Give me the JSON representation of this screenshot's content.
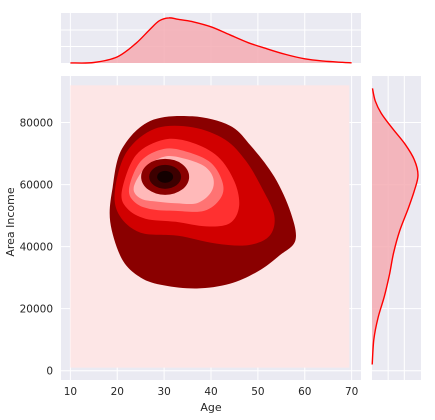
{
  "chart_data": {
    "type": "jointplot-kde",
    "xlabel": "Age",
    "ylabel": "Area Income",
    "xlim": [
      8,
      72
    ],
    "ylim": [
      -3000,
      95000
    ],
    "xticks": [
      10,
      20,
      30,
      40,
      50,
      60,
      70
    ],
    "yticks": [
      0,
      20000,
      40000,
      60000,
      80000
    ],
    "xtick_labels": [
      "10",
      "20",
      "30",
      "40",
      "50",
      "60",
      "70"
    ],
    "ytick_labels": [
      "0",
      "20000",
      "40000",
      "60000",
      "80000"
    ],
    "grid": true,
    "fill_extent": {
      "x": [
        10,
        69.5
      ],
      "y": [
        1000,
        92000
      ]
    },
    "peak": {
      "x": 30,
      "y": 62500
    },
    "joint_contours": [
      {
        "level": 1,
        "points": [
          [
            23.5,
            59000
          ],
          [
            26,
            65500
          ],
          [
            30,
            69000
          ],
          [
            34,
            68500
          ],
          [
            38.5,
            66000
          ],
          [
            40.5,
            62000
          ],
          [
            40,
            57500
          ],
          [
            37,
            54000
          ],
          [
            32.5,
            54000
          ],
          [
            28.5,
            54500
          ],
          [
            25,
            55500
          ]
        ]
      },
      {
        "level": 2,
        "points": [
          [
            22.5,
            58500
          ],
          [
            25,
            67500
          ],
          [
            30,
            71500
          ],
          [
            35,
            70500
          ],
          [
            40,
            67000
          ],
          [
            42.5,
            60500
          ],
          [
            42,
            55500
          ],
          [
            38.5,
            51500
          ],
          [
            32.5,
            51500
          ],
          [
            27.5,
            52000
          ],
          [
            24,
            54000
          ]
        ]
      },
      {
        "level": 3,
        "points": [
          [
            21,
            58000
          ],
          [
            24,
            69500
          ],
          [
            30,
            74500
          ],
          [
            36,
            73500
          ],
          [
            41.5,
            69000
          ],
          [
            45,
            61000
          ],
          [
            46,
            53000
          ],
          [
            44,
            47500
          ],
          [
            39,
            46500
          ],
          [
            32.5,
            48000
          ],
          [
            26,
            49000
          ],
          [
            22,
            52500
          ]
        ]
      },
      {
        "level": 4,
        "points": [
          [
            19.5,
            58000
          ],
          [
            22,
            70500
          ],
          [
            28,
            78000
          ],
          [
            36,
            78500
          ],
          [
            43,
            74500
          ],
          [
            47.5,
            67500
          ],
          [
            51,
            58500
          ],
          [
            53.5,
            50000
          ],
          [
            52.5,
            43500
          ],
          [
            48,
            40500
          ],
          [
            41,
            41000
          ],
          [
            33,
            43500
          ],
          [
            25,
            44500
          ],
          [
            20.5,
            50000
          ]
        ]
      },
      {
        "level": 5,
        "points": [
          [
            19,
            59000
          ],
          [
            21,
            71500
          ],
          [
            27,
            80500
          ],
          [
            36,
            82000
          ],
          [
            44,
            79000
          ],
          [
            48.5,
            72500
          ],
          [
            53.5,
            62500
          ],
          [
            57,
            51000
          ],
          [
            58,
            42000
          ],
          [
            54.5,
            37000
          ],
          [
            50,
            32000
          ],
          [
            44,
            28000
          ],
          [
            37,
            26500
          ],
          [
            30,
            27500
          ],
          [
            25,
            30000
          ],
          [
            21,
            36000
          ],
          [
            18.5,
            48000
          ]
        ]
      }
    ],
    "marginal_x": [
      [
        10,
        0.002
      ],
      [
        15,
        0.01
      ],
      [
        20,
        0.13
      ],
      [
        24,
        0.42
      ],
      [
        27,
        0.72
      ],
      [
        29,
        0.9
      ],
      [
        31,
        0.96
      ],
      [
        33,
        0.93
      ],
      [
        36,
        0.88
      ],
      [
        40,
        0.77
      ],
      [
        44,
        0.6
      ],
      [
        48,
        0.43
      ],
      [
        52,
        0.3
      ],
      [
        56,
        0.18
      ],
      [
        60,
        0.09
      ],
      [
        64,
        0.04
      ],
      [
        68,
        0.015
      ],
      [
        70,
        0.005
      ]
    ],
    "marginal_y": [
      [
        2000,
        0.004
      ],
      [
        10000,
        0.04
      ],
      [
        17000,
        0.13
      ],
      [
        24000,
        0.27
      ],
      [
        31000,
        0.38
      ],
      [
        38000,
        0.47
      ],
      [
        45000,
        0.6
      ],
      [
        52000,
        0.78
      ],
      [
        58000,
        0.92
      ],
      [
        63000,
        1.0
      ],
      [
        68000,
        0.92
      ],
      [
        73000,
        0.72
      ],
      [
        78000,
        0.45
      ],
      [
        83000,
        0.2
      ],
      [
        87000,
        0.07
      ],
      [
        91000,
        0.01
      ]
    ]
  },
  "colors": {
    "panel_bg": "#eaeaf2",
    "grid": "#ffffff",
    "line": "#ff0000",
    "marginal_fill": "#f4acb3",
    "levels": [
      "#fde6e6",
      "#ffb9b9",
      "#ff7373",
      "#ff3030",
      "#d10000",
      "#8a0000",
      "#3d0000",
      "#140000"
    ]
  }
}
